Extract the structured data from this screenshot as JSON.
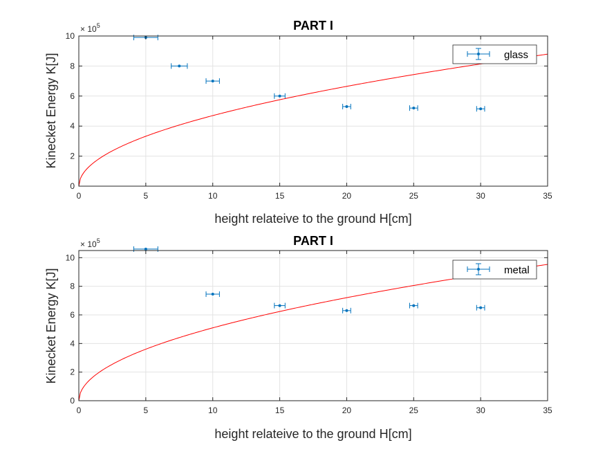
{
  "chart_data": [
    {
      "type": "scatter",
      "title": "PART I",
      "xlabel": "height relateive to the ground H[cm]",
      "ylabel": "Kinecket Energy K[J]",
      "y_exponent_base": "× 10",
      "y_exponent_power": "5",
      "xlim": [
        0,
        35
      ],
      "ylim": [
        0,
        10
      ],
      "xticks": [
        0,
        5,
        10,
        15,
        20,
        25,
        30,
        35
      ],
      "yticks": [
        0,
        2,
        4,
        6,
        8,
        10
      ],
      "grid": true,
      "legend_position": "top-right",
      "series": [
        {
          "name": "glass",
          "kind": "errorbar",
          "color": "#0072bd",
          "points": [
            {
              "x": 5,
              "y": 9.9,
              "xerr": 0.9
            },
            {
              "x": 7.5,
              "y": 8.0,
              "xerr": 0.6
            },
            {
              "x": 10,
              "y": 7.0,
              "xerr": 0.5
            },
            {
              "x": 15,
              "y": 6.0,
              "xerr": 0.4
            },
            {
              "x": 20,
              "y": 5.3,
              "xerr": 0.3
            },
            {
              "x": 25,
              "y": 5.2,
              "xerr": 0.3
            },
            {
              "x": 30,
              "y": 5.15,
              "xerr": 0.3
            }
          ]
        },
        {
          "kind": "fit",
          "color": "#ff0000",
          "model": "a*sqrt(x)",
          "a": 1.486
        }
      ]
    },
    {
      "type": "scatter",
      "title": "PART I",
      "xlabel": "height relateive to the ground H[cm]",
      "ylabel": "Kinecket Energy K[J]",
      "y_exponent_base": "× 10",
      "y_exponent_power": "5",
      "xlim": [
        0,
        35
      ],
      "ylim": [
        0,
        10.5
      ],
      "xticks": [
        0,
        5,
        10,
        15,
        20,
        25,
        30,
        35
      ],
      "yticks": [
        0,
        2,
        4,
        6,
        8,
        10
      ],
      "grid": true,
      "legend_position": "top-right",
      "series": [
        {
          "name": "metal",
          "kind": "errorbar",
          "color": "#0072bd",
          "points": [
            {
              "x": 5,
              "y": 10.6,
              "xerr": 0.9
            },
            {
              "x": 10,
              "y": 7.45,
              "xerr": 0.5
            },
            {
              "x": 15,
              "y": 6.65,
              "xerr": 0.4
            },
            {
              "x": 20,
              "y": 6.3,
              "xerr": 0.3
            },
            {
              "x": 25,
              "y": 6.65,
              "xerr": 0.3
            },
            {
              "x": 30,
              "y": 6.5,
              "xerr": 0.3
            }
          ]
        },
        {
          "kind": "fit",
          "color": "#ff0000",
          "model": "a*sqrt(x)",
          "a": 1.611
        }
      ]
    }
  ]
}
